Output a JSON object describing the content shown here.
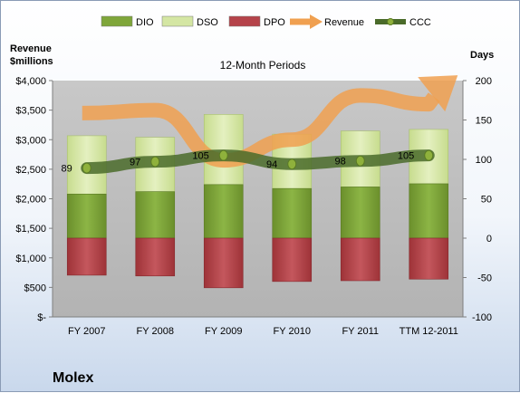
{
  "company": "Molex",
  "chart_data": {
    "type": "bar",
    "title": "12-Month Periods",
    "ylabel_left": "Revenue\n$millions",
    "ylabel_right": "Days",
    "categories": [
      "FY 2007",
      "FY 2008",
      "FY 2009",
      "FY 2010",
      "FY 2011",
      "TTM 12-2011"
    ],
    "y_left": {
      "min": 0,
      "max": 4000,
      "step": 500,
      "tick_labels": [
        "$-",
        "$500",
        "$1,000",
        "$1,500",
        "$2,000",
        "$2,500",
        "$3,000",
        "$3,500",
        "$4,000"
      ]
    },
    "y_right": {
      "min": -100,
      "max": 200,
      "step": 50,
      "tick_labels": [
        "-100",
        "-50",
        "0",
        "50",
        "100",
        "150",
        "200"
      ]
    },
    "legend_placement": "top",
    "legend": [
      {
        "name": "DIO",
        "kind": "bar",
        "color": "#7fa63a"
      },
      {
        "name": "DSO",
        "kind": "bar",
        "color": "#d4e6a3"
      },
      {
        "name": "DPO",
        "kind": "bar",
        "color": "#b5434a"
      },
      {
        "name": "Revenue",
        "kind": "arrow",
        "color": "#f0a050"
      },
      {
        "name": "CCC",
        "kind": "line",
        "color": "#4a6b2a"
      }
    ],
    "series": [
      {
        "name": "DIO",
        "axis": "right",
        "values": [
          56,
          59,
          68,
          63,
          65,
          69
        ]
      },
      {
        "name": "DSO",
        "axis": "right",
        "values": [
          74,
          69,
          89,
          69,
          71,
          69
        ]
      },
      {
        "name": "DPO",
        "axis": "right",
        "values": [
          -47,
          -48,
          -63,
          -55,
          -54,
          -52
        ]
      },
      {
        "name": "CCC",
        "axis": "right",
        "values": [
          89,
          97,
          105,
          94,
          98,
          105
        ]
      },
      {
        "name": "Revenue",
        "axis": "left",
        "values": [
          3450,
          3500,
          2650,
          3000,
          3750,
          3600
        ]
      }
    ],
    "data_labels": [
      "89",
      "97",
      "105",
      "94",
      "98",
      "105"
    ],
    "grid": false,
    "colors": {
      "plot_background": "#bdbdbd",
      "dio": "#7fa63a",
      "dso": "#d4e6a3",
      "dpo": "#b5434a",
      "revenue": "#f0a050",
      "ccc": "#4a6b2a",
      "marker": "#8fb13c"
    }
  }
}
